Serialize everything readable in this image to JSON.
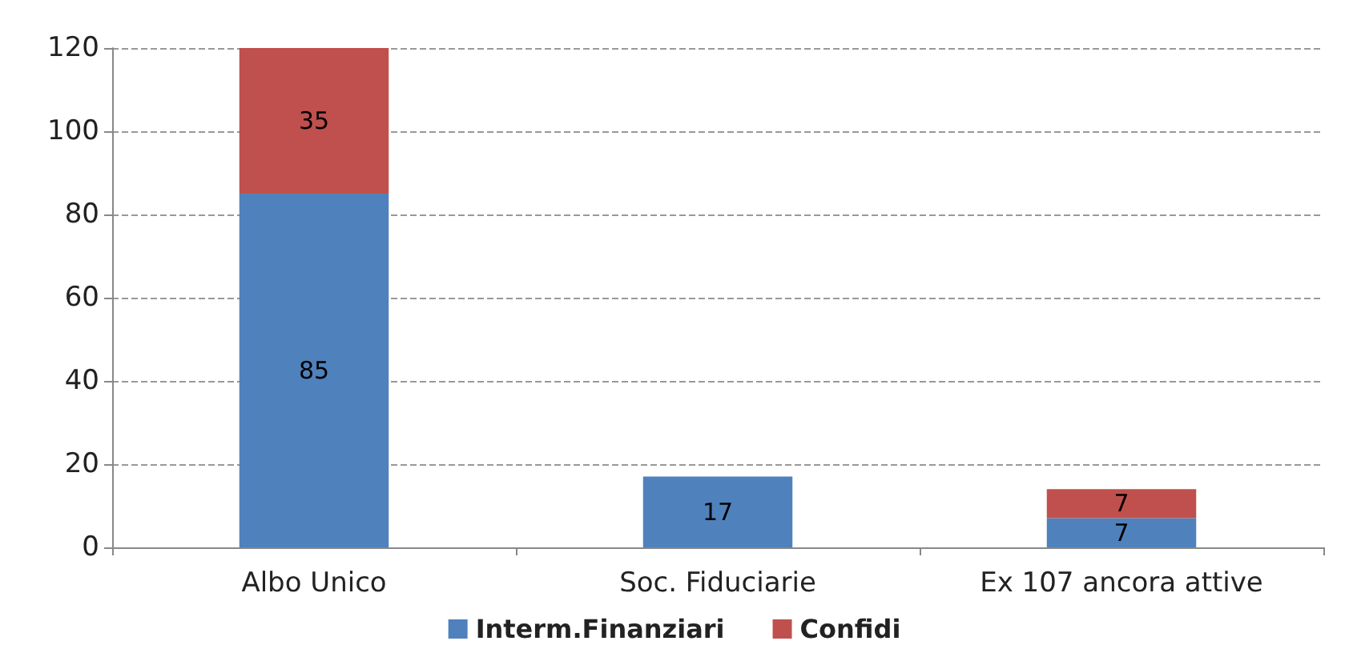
{
  "chart_data": {
    "type": "bar",
    "stacked": true,
    "categories": [
      "Albo Unico",
      "Soc. Fiduciarie",
      "Ex 107 ancora attive"
    ],
    "series": [
      {
        "name": "Interm.Finanziari",
        "color": "#4f81bd",
        "values": [
          85,
          17,
          7
        ]
      },
      {
        "name": "Confidi",
        "color": "#c0504d",
        "values": [
          35,
          null,
          7
        ]
      }
    ],
    "ylim": [
      0,
      120
    ],
    "yticks": [
      0,
      20,
      40,
      60,
      80,
      100,
      120
    ],
    "grid": "y",
    "legend": "bottom",
    "data_labels": true
  }
}
